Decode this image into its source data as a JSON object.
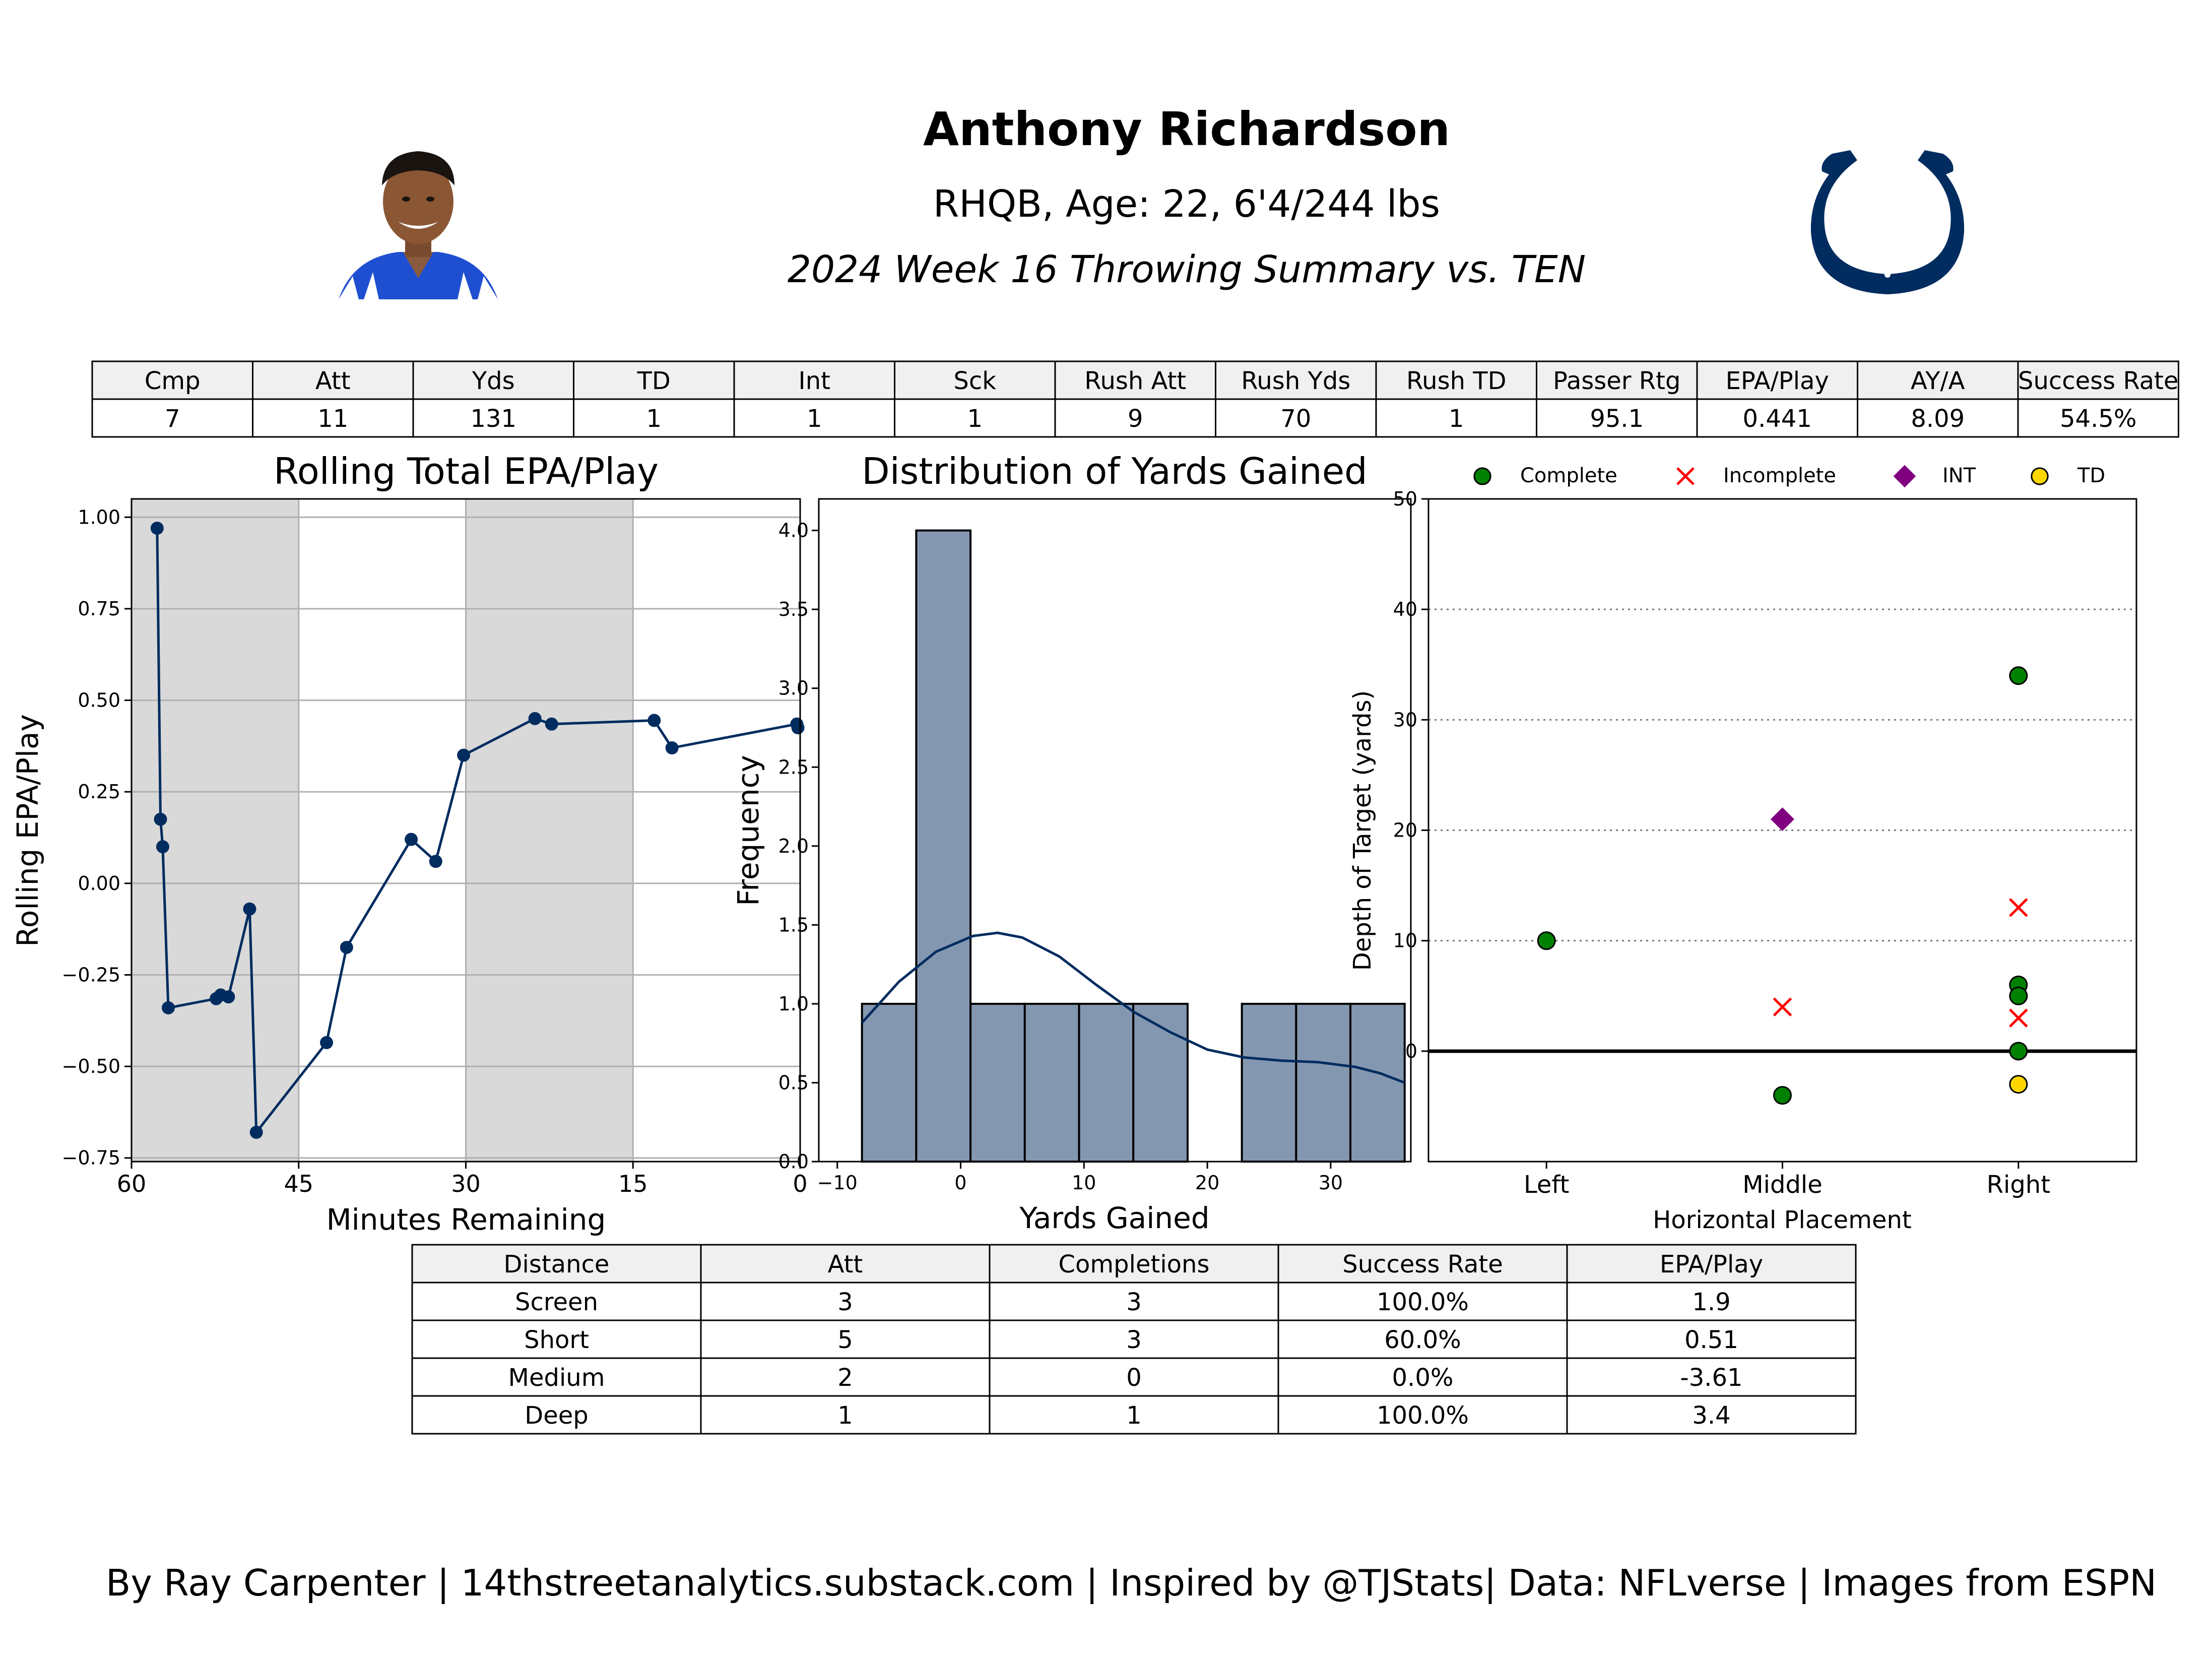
{
  "header": {
    "name": "Anthony Richardson",
    "bio": "RHQB, Age: 22, 6'4/244 lbs",
    "subtitle": "2024 Week 16 Throwing Summary vs. TEN"
  },
  "colors": {
    "navy": "#002C5F",
    "hist_fill": "#8497B0",
    "shade": "#d9d9d9",
    "complete": "#008000",
    "incomplete": "#ff0000",
    "int": "#800080",
    "td": "#ffd700",
    "header_cell": "#f0f0f0"
  },
  "stats_table": {
    "headers": [
      "Cmp",
      "Att",
      "Yds",
      "TD",
      "Int",
      "Sck",
      "Rush Att",
      "Rush Yds",
      "Rush TD",
      "Passer Rtg",
      "EPA/Play",
      "AY/A",
      "Success Rate"
    ],
    "values": [
      "7",
      "11",
      "131",
      "1",
      "1",
      "1",
      "9",
      "70",
      "1",
      "95.1",
      "0.441",
      "8.09",
      "54.5%"
    ]
  },
  "depth_table": {
    "headers": [
      "Distance",
      "Att",
      "Completions",
      "Success Rate",
      "EPA/Play"
    ],
    "rows": [
      [
        "Screen",
        "3",
        "3",
        "100.0%",
        "1.9"
      ],
      [
        "Short",
        "5",
        "3",
        "60.0%",
        "0.51"
      ],
      [
        "Medium",
        "2",
        "0",
        "0.0%",
        "-3.61"
      ],
      [
        "Deep",
        "1",
        "1",
        "100.0%",
        "3.4"
      ]
    ]
  },
  "chart_data": [
    {
      "type": "line",
      "title": "Rolling Total EPA/Play",
      "xlabel": "Minutes Remaining",
      "ylabel": "Rolling EPA/Play",
      "xlim": [
        60,
        0
      ],
      "ylim": [
        -0.76,
        1.05
      ],
      "xticks": [
        "60",
        "45",
        "30",
        "15",
        "0"
      ],
      "yticks": [
        "1.00",
        "0.75",
        "0.50",
        "0.25",
        "0.00",
        "−0.25",
        "−0.50",
        "−0.75"
      ],
      "shaded_quarters": [
        [
          60,
          45
        ],
        [
          30,
          15
        ]
      ],
      "x": [
        57.7,
        57.4,
        57.2,
        56.7,
        52.4,
        52.0,
        51.3,
        49.4,
        48.8,
        42.5,
        40.7,
        34.9,
        32.7,
        30.2,
        23.8,
        22.3,
        13.1,
        11.5,
        0.3,
        0.2
      ],
      "y": [
        0.97,
        0.175,
        0.1,
        -0.34,
        -0.315,
        -0.305,
        -0.31,
        -0.07,
        -0.68,
        -0.435,
        -0.175,
        0.12,
        0.06,
        0.35,
        0.45,
        0.435,
        0.445,
        0.37,
        0.435,
        0.425
      ]
    },
    {
      "type": "bar",
      "title": "Distribution of Yards Gained",
      "xlabel": "Yards Gained",
      "ylabel": "Frequency",
      "xlim": [
        -11.5,
        36.5
      ],
      "ylim": [
        0,
        4.2
      ],
      "xticks": [
        "−10",
        "0",
        "10",
        "20",
        "30"
      ],
      "yticks": [
        "0.0",
        "0.5",
        "1.0",
        "1.5",
        "2.0",
        "2.5",
        "3.0",
        "3.5",
        "4.0"
      ],
      "bins": [
        {
          "x0": -8,
          "x1": -3.6,
          "count": 1
        },
        {
          "x0": -3.6,
          "x1": 0.8,
          "count": 4
        },
        {
          "x0": 0.8,
          "x1": 5.2,
          "count": 1
        },
        {
          "x0": 5.2,
          "x1": 9.6,
          "count": 1
        },
        {
          "x0": 9.6,
          "x1": 14.0,
          "count": 1
        },
        {
          "x0": 14.0,
          "x1": 18.4,
          "count": 1
        },
        {
          "x0": 22.8,
          "x1": 27.2,
          "count": 1
        },
        {
          "x0": 27.2,
          "x1": 31.6,
          "count": 1
        },
        {
          "x0": 31.6,
          "x1": 36.0,
          "count": 1
        }
      ],
      "kde": {
        "x": [
          -8,
          -5,
          -2,
          1,
          3,
          5,
          8,
          11,
          14,
          17,
          20,
          23,
          26,
          29,
          32,
          34,
          36
        ],
        "y": [
          0.88,
          1.14,
          1.33,
          1.43,
          1.45,
          1.42,
          1.3,
          1.12,
          0.95,
          0.82,
          0.71,
          0.66,
          0.64,
          0.63,
          0.6,
          0.56,
          0.5
        ]
      }
    },
    {
      "type": "scatter",
      "title": "",
      "xlabel": "Horizontal Placement",
      "ylabel": "Depth of Target (yards)",
      "categories": [
        "Left",
        "Middle",
        "Right"
      ],
      "ylim": [
        -10,
        50
      ],
      "yticks": [
        "0",
        "10",
        "20",
        "30",
        "40",
        "50"
      ],
      "legend": [
        "Complete",
        "Incomplete",
        "INT",
        "TD"
      ],
      "series": [
        {
          "name": "Complete",
          "points": [
            [
              "Left",
              10
            ],
            [
              "Middle",
              -4
            ],
            [
              "Right",
              34
            ],
            [
              "Right",
              6
            ],
            [
              "Right",
              5
            ],
            [
              "Right",
              0
            ]
          ]
        },
        {
          "name": "Incomplete",
          "points": [
            [
              "Middle",
              4
            ],
            [
              "Right",
              13
            ],
            [
              "Right",
              3
            ]
          ]
        },
        {
          "name": "INT",
          "points": [
            [
              "Middle",
              21
            ]
          ]
        },
        {
          "name": "TD",
          "points": [
            [
              "Right",
              -3
            ]
          ]
        }
      ]
    }
  ],
  "footer": "By Ray Carpenter | 14thstreetanalytics.substack.com | Inspired by @TJStats| Data: NFLverse | Images from ESPN"
}
